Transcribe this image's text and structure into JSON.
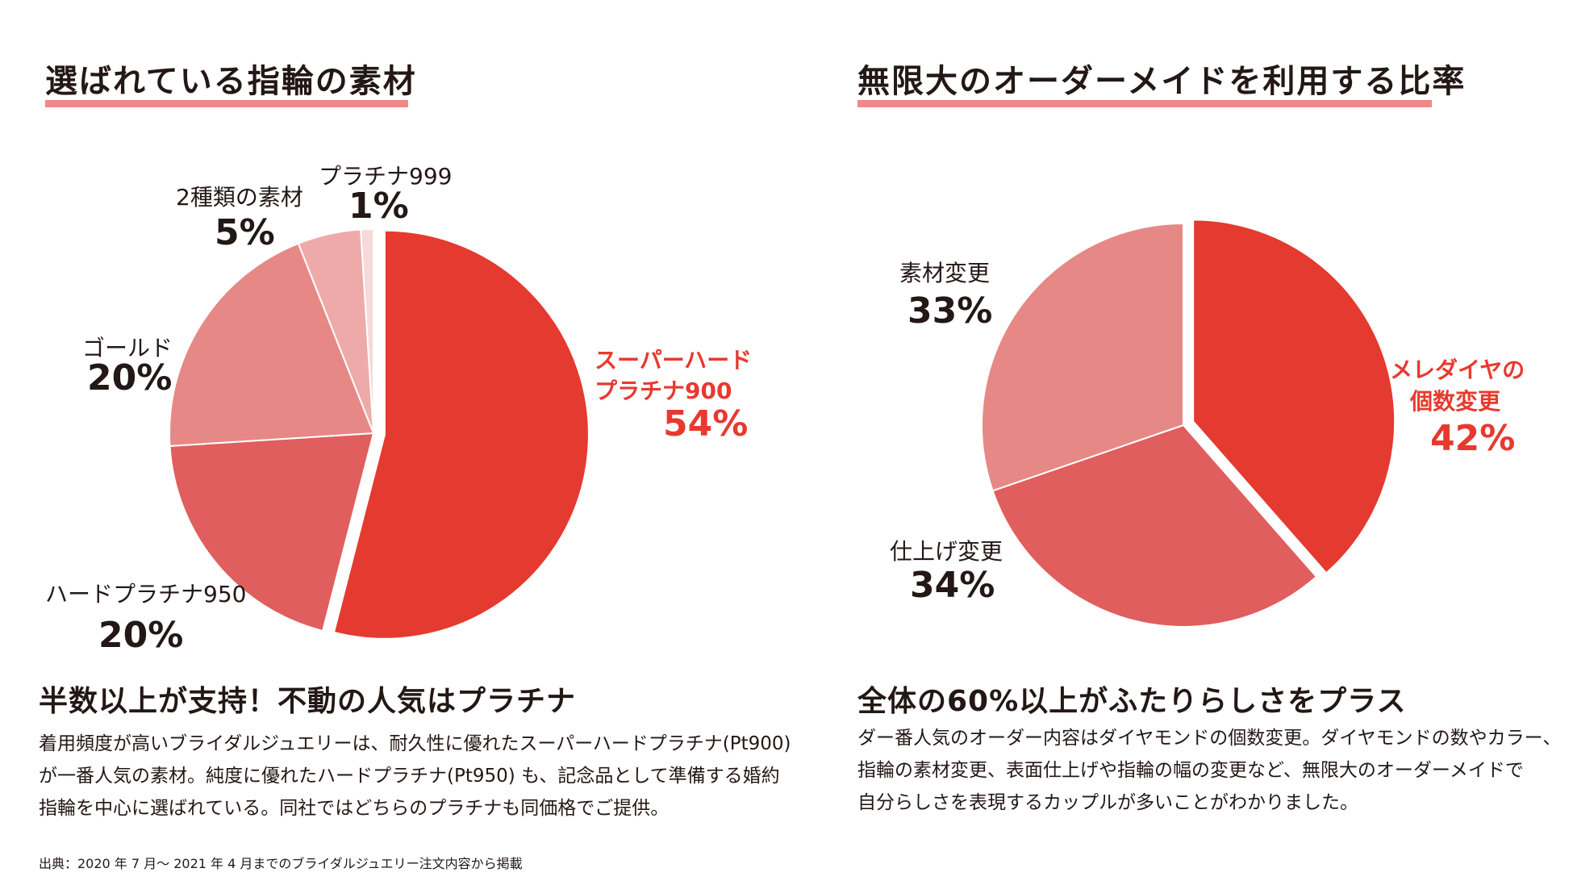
{
  "left": {
    "title": "選ばれている指輪の素材",
    "heading": "半数以上が支持！不動の人気はプラチナ",
    "body_lines": [
      "着用頻度が高いブライダルジュエリーは、耐久性に優れたスーパーハードプラチナ(Pt900)",
      "が一番人気の素材。純度に優れたハードプラチナ(Pt950) も、記念品として準備する婚約",
      "指輪を中心に選ばれている。同社ではどちらのプラチナも同価格でご提供。"
    ],
    "source": "出典：2020 年 7 月〜 2021 年 4 月までのブライダルジュエリー注文内容から掲載",
    "labels": {
      "super_hard": {
        "name_1": "スーパーハード",
        "name_2": "プラチナ900",
        "pct": "54%"
      },
      "hard_950": {
        "name": "ハードプラチナ950",
        "pct": "20%"
      },
      "gold": {
        "name": "ゴールド",
        "pct": "20%"
      },
      "two_types": {
        "name": "2種類の素材",
        "pct": "5%"
      },
      "pt999": {
        "name": "プラチナ999",
        "pct": "1%"
      }
    }
  },
  "right": {
    "title": "無限大のオーダーメイドを利用する比率",
    "heading": "全体の60%以上がふたりらしさをプラス",
    "body_lines": [
      "ダー番人気のオーダー内容はダイヤモンドの個数変更。ダイヤモンドの数やカラー、",
      "指輪の素材変更、表面仕上げや指輪の幅の変更など、無限大のオーダーメイドで",
      "自分らしさを表現するカップルが多いことがわかりました。"
    ],
    "labels": {
      "melee": {
        "name_1": "メレダイヤの",
        "name_2": "個数変更",
        "pct": "42%"
      },
      "finish": {
        "name": "仕上げ変更",
        "pct": "34%"
      },
      "material": {
        "name": "素材変更",
        "pct": "33%"
      }
    }
  },
  "colors": {
    "accent_red": "#e8392f",
    "underline": "#ee8986",
    "text": "#231815"
  },
  "chart_data": [
    {
      "type": "pie",
      "title": "選ばれている指輪の素材",
      "categories": [
        "スーパーハードプラチナ900",
        "ハードプラチナ950",
        "ゴールド",
        "2種類の素材",
        "プラチナ999"
      ],
      "values": [
        54,
        20,
        20,
        5,
        1
      ],
      "unit": "%",
      "colors": [
        "#e53a2f",
        "#e05e5d",
        "#e68986",
        "#eeaaa9",
        "#f7d9d8"
      ],
      "exploded": "スーパーハードプラチナ900"
    },
    {
      "type": "pie",
      "title": "無限大のオーダーメイドを利用する比率",
      "categories": [
        "メレダイヤの個数変更",
        "仕上げ変更",
        "素材変更"
      ],
      "values": [
        42,
        34,
        33
      ],
      "unit": "%",
      "colors": [
        "#e53a2f",
        "#e05e5d",
        "#e68986"
      ],
      "exploded": "メレダイヤの個数変更"
    }
  ]
}
